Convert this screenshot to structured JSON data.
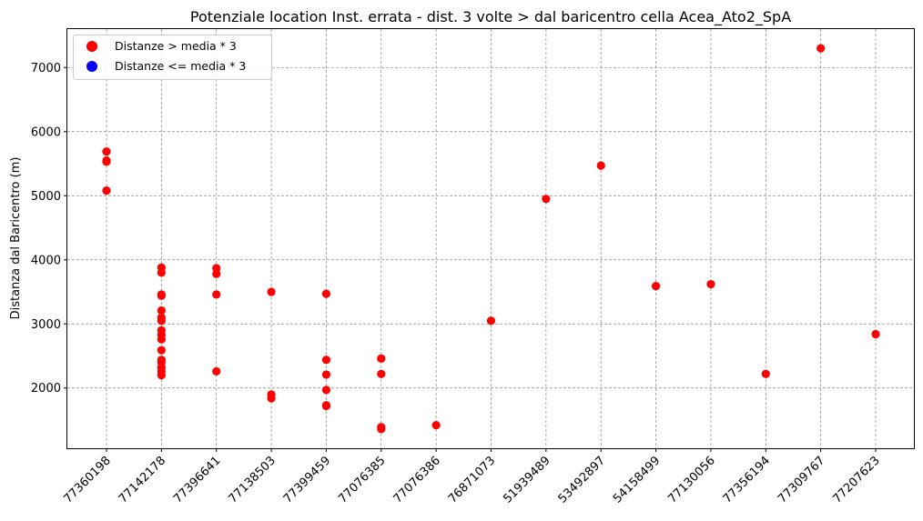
{
  "chart_data": {
    "type": "scatter",
    "title": "Potenziale location Inst. errata - dist. 3 volte > dal baricentro cella Acea_Ato2_SpA",
    "xlabel": "",
    "ylabel": "Distanza dal Baricentro (m)",
    "categories": [
      "77360198",
      "77142178",
      "77396641",
      "77138503",
      "77399459",
      "77076385",
      "77076386",
      "76871073",
      "51939489",
      "53492897",
      "54158499",
      "77130056",
      "77356194",
      "77309767",
      "77207623"
    ],
    "ylim": [
      1060,
      7600
    ],
    "yticks": [
      2000,
      3000,
      4000,
      5000,
      6000,
      7000
    ],
    "grid": true,
    "legend_position": "top-left",
    "legend": [
      {
        "label": "Distanze > media * 3",
        "color": "#ff0000"
      },
      {
        "label": "Distanze <= media * 3",
        "color": "#0000ff"
      }
    ],
    "series": [
      {
        "color": "#ff0000",
        "points": [
          {
            "x": "77360198",
            "y": 5690
          },
          {
            "x": "77360198",
            "y": 5550
          },
          {
            "x": "77360198",
            "y": 5530
          },
          {
            "x": "77360198",
            "y": 5080
          },
          {
            "x": "77142178",
            "y": 3880
          },
          {
            "x": "77142178",
            "y": 3800
          },
          {
            "x": "77142178",
            "y": 3460
          },
          {
            "x": "77142178",
            "y": 3440
          },
          {
            "x": "77142178",
            "y": 3210
          },
          {
            "x": "77142178",
            "y": 3100
          },
          {
            "x": "77142178",
            "y": 3050
          },
          {
            "x": "77142178",
            "y": 2900
          },
          {
            "x": "77142178",
            "y": 2830
          },
          {
            "x": "77142178",
            "y": 2760
          },
          {
            "x": "77142178",
            "y": 2590
          },
          {
            "x": "77142178",
            "y": 2440
          },
          {
            "x": "77142178",
            "y": 2400
          },
          {
            "x": "77142178",
            "y": 2320
          },
          {
            "x": "77142178",
            "y": 2260
          },
          {
            "x": "77142178",
            "y": 2200
          },
          {
            "x": "77396641",
            "y": 3870
          },
          {
            "x": "77396641",
            "y": 3780
          },
          {
            "x": "77396641",
            "y": 3460
          },
          {
            "x": "77396641",
            "y": 2260
          },
          {
            "x": "77138503",
            "y": 3500
          },
          {
            "x": "77138503",
            "y": 1900
          },
          {
            "x": "77138503",
            "y": 1840
          },
          {
            "x": "77399459",
            "y": 3470
          },
          {
            "x": "77399459",
            "y": 2440
          },
          {
            "x": "77399459",
            "y": 2210
          },
          {
            "x": "77399459",
            "y": 1970
          },
          {
            "x": "77399459",
            "y": 1730
          },
          {
            "x": "77399459",
            "y": 1720
          },
          {
            "x": "77076385",
            "y": 2460
          },
          {
            "x": "77076385",
            "y": 2220
          },
          {
            "x": "77076385",
            "y": 1390
          },
          {
            "x": "77076385",
            "y": 1360
          },
          {
            "x": "77076386",
            "y": 1420
          },
          {
            "x": "76871073",
            "y": 3050
          },
          {
            "x": "51939489",
            "y": 4950
          },
          {
            "x": "53492897",
            "y": 5470
          },
          {
            "x": "54158499",
            "y": 3590
          },
          {
            "x": "77130056",
            "y": 3620
          },
          {
            "x": "77356194",
            "y": 2220
          },
          {
            "x": "77309767",
            "y": 7300
          },
          {
            "x": "77207623",
            "y": 2840
          }
        ]
      }
    ]
  }
}
